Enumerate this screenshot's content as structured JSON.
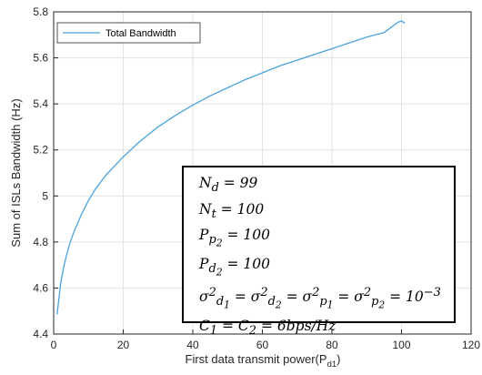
{
  "chart_data": {
    "type": "line",
    "xlabel": "First data transmit power(P",
    "xlabel_sub": "d1",
    "xlabel_close": ")",
    "ylabel": "Sum of ISLs Bandwidth (Hz)",
    "xlim": [
      0,
      120
    ],
    "ylim": [
      4.4,
      5.8
    ],
    "xticks": [
      "0",
      "20",
      "40",
      "60",
      "80",
      "100",
      "120"
    ],
    "yticks": [
      "4.4",
      "4.6",
      "4.8",
      "5",
      "5.2",
      "5.4",
      "5.6",
      "5.8"
    ],
    "grid": true,
    "legend_position": "top-left",
    "series": [
      {
        "name": "Total Bandwidth",
        "color": "#4aa3df",
        "x": [
          1,
          2,
          3,
          4,
          5,
          6,
          8,
          10,
          12,
          15,
          20,
          25,
          30,
          35,
          40,
          45,
          50,
          55,
          60,
          65,
          70,
          75,
          80,
          85,
          90,
          95,
          99,
          100,
          101
        ],
        "y": [
          4.485,
          4.62,
          4.7,
          4.76,
          4.81,
          4.85,
          4.92,
          4.98,
          5.03,
          5.09,
          5.17,
          5.24,
          5.3,
          5.35,
          5.395,
          5.435,
          5.47,
          5.505,
          5.535,
          5.565,
          5.59,
          5.615,
          5.64,
          5.665,
          5.69,
          5.71,
          5.755,
          5.76,
          5.75
        ]
      }
    ]
  },
  "parameters": [
    "N_d = 99",
    "N_t = 100",
    "P_p2 = 100",
    "P_d2 = 100",
    "σ²_d1 = σ²_d2 = σ²_p1 = σ²_p2 = 10⁻³",
    "C_1 = C_2 = 6bps/Hz"
  ]
}
